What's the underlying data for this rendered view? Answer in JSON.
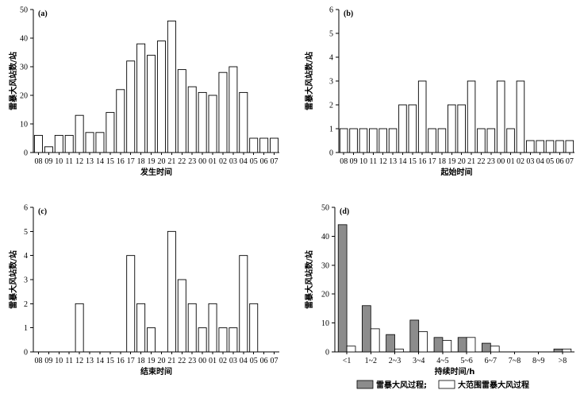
{
  "y_axis_label": "雷暴大风站数/站",
  "legend": {
    "series1_label": "雷暴大风过程;",
    "series2_label": "大范围雷暴大风过程",
    "series1_color": "#8c8c8c",
    "series2_color": "#ffffff"
  },
  "chart_data": [
    {
      "type": "bar",
      "panel_label": "(a)",
      "xlabel": "发生时间",
      "ylabel": "雷暴大风站数/站",
      "ylim": [
        0,
        50
      ],
      "yticks": [
        0,
        10,
        20,
        30,
        40,
        50
      ],
      "categories": [
        "08",
        "09",
        "10",
        "11",
        "12",
        "13",
        "14",
        "15",
        "16",
        "17",
        "18",
        "19",
        "20",
        "21",
        "22",
        "23",
        "00",
        "01",
        "02",
        "03",
        "04",
        "05",
        "06",
        "07"
      ],
      "series": [
        {
          "values": [
            6,
            2,
            6,
            6,
            13,
            7,
            7,
            14,
            22,
            32,
            38,
            34,
            39,
            46,
            29,
            23,
            21,
            20,
            28,
            30,
            21,
            5,
            5,
            5
          ]
        }
      ]
    },
    {
      "type": "bar",
      "panel_label": "(b)",
      "xlabel": "起始时间",
      "ylabel": "雷暴大风站数/站",
      "ylim": [
        0,
        6
      ],
      "yticks": [
        0,
        1,
        2,
        3,
        4,
        5,
        6
      ],
      "categories": [
        "08",
        "09",
        "10",
        "11",
        "12",
        "13",
        "14",
        "15",
        "16",
        "17",
        "18",
        "19",
        "20",
        "21",
        "22",
        "23",
        "00",
        "01",
        "02",
        "03",
        "04",
        "05",
        "06",
        "07"
      ],
      "series": [
        {
          "values": [
            1,
            1,
            1,
            1,
            1,
            1,
            2,
            2,
            3,
            1,
            1,
            2,
            2,
            3,
            1,
            1,
            3,
            1,
            3,
            0.5,
            0.5,
            0.5,
            0.5,
            0.5
          ]
        }
      ]
    },
    {
      "type": "bar",
      "panel_label": "(c)",
      "xlabel": "结束时间",
      "ylabel": "雷暴大风站数/站",
      "ylim": [
        0,
        6
      ],
      "yticks": [
        0,
        1,
        2,
        3,
        4,
        5,
        6
      ],
      "categories": [
        "08",
        "09",
        "10",
        "11",
        "12",
        "13",
        "14",
        "15",
        "16",
        "17",
        "18",
        "19",
        "20",
        "21",
        "22",
        "23",
        "00",
        "01",
        "02",
        "03",
        "04",
        "05",
        "06",
        "07"
      ],
      "series": [
        {
          "values": [
            0,
            0,
            0,
            0,
            2,
            0,
            0,
            0,
            0,
            4,
            2,
            1,
            0,
            5,
            3,
            2,
            1,
            2,
            1,
            1,
            4,
            2,
            0,
            0
          ]
        }
      ]
    },
    {
      "type": "bar",
      "panel_label": "(d)",
      "xlabel": "持续时间/h",
      "ylabel": "雷暴大风站数/站",
      "ylim": [
        0,
        50
      ],
      "yticks": [
        0,
        10,
        20,
        30,
        40,
        50
      ],
      "categories": [
        "<1",
        "1~2",
        "2~3",
        "3~4",
        "4~5",
        "5~6",
        "6~7",
        "7~8",
        "8~9",
        ">8"
      ],
      "series": [
        {
          "name": "雷暴大风过程;",
          "values": [
            44,
            16,
            6,
            11,
            5,
            5,
            3,
            0,
            0,
            1
          ]
        },
        {
          "name": "大范围雷暴大风过程",
          "values": [
            2,
            8,
            1,
            7,
            4,
            5,
            2,
            0,
            0,
            1
          ]
        }
      ]
    }
  ]
}
